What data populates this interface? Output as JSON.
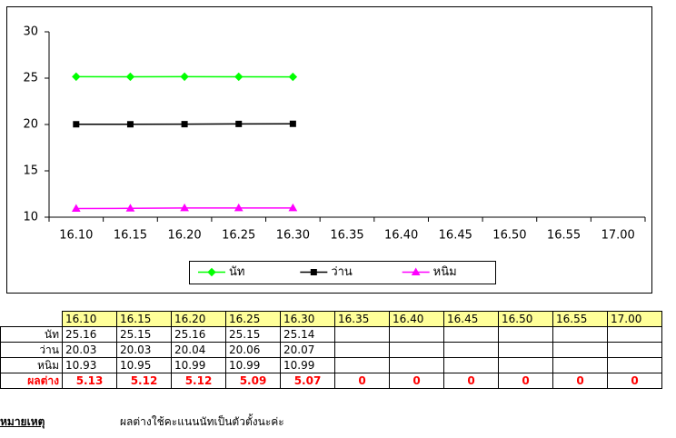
{
  "chart_data": {
    "type": "line",
    "categories": [
      "16.10",
      "16.15",
      "16.20",
      "16.25",
      "16.30",
      "16.35",
      "16.40",
      "16.45",
      "16.50",
      "16.55",
      "17.00"
    ],
    "series": [
      {
        "name": "นัท",
        "color": "#00ff00",
        "marker": "diamond",
        "values": [
          25.16,
          25.15,
          25.16,
          25.15,
          25.14,
          null,
          null,
          null,
          null,
          null,
          null
        ]
      },
      {
        "name": "ว่าน",
        "color": "#000000",
        "marker": "square",
        "values": [
          20.03,
          20.03,
          20.04,
          20.06,
          20.07,
          null,
          null,
          null,
          null,
          null,
          null
        ]
      },
      {
        "name": "หนิม",
        "color": "#ff00ff",
        "marker": "triangle",
        "values": [
          10.93,
          10.95,
          10.99,
          10.99,
          10.99,
          null,
          null,
          null,
          null,
          null,
          null
        ]
      }
    ],
    "ylim": [
      10,
      30
    ],
    "yticks": [
      10,
      15,
      20,
      25,
      30
    ],
    "grid": false,
    "legend": "bottom"
  },
  "table": {
    "header": [
      "16.10",
      "16.15",
      "16.20",
      "16.25",
      "16.30",
      "16.35",
      "16.40",
      "16.45",
      "16.50",
      "16.55",
      "17.00"
    ],
    "rows": [
      [
        "นัท",
        "25.16",
        "25.15",
        "25.16",
        "25.15",
        "25.14",
        null,
        null,
        null,
        null,
        null,
        null
      ],
      [
        "ว่าน",
        "20.03",
        "20.03",
        "20.04",
        "20.06",
        "20.07",
        null,
        null,
        null,
        null,
        null,
        null
      ],
      [
        "หนิม",
        "10.93",
        "10.95",
        "10.99",
        "10.99",
        "10.99",
        null,
        null,
        null,
        null,
        null,
        null
      ],
      [
        "ผลต่าง",
        "5.13",
        "5.12",
        "5.12",
        "5.09",
        "5.07",
        "0",
        "0",
        "0",
        "0",
        "0",
        "0"
      ]
    ]
  },
  "note": {
    "label": "หมายเหตุ",
    "text": "ผลต่างใช้คะแนนนัทเป็นตัวตั้งนะค่ะ"
  }
}
